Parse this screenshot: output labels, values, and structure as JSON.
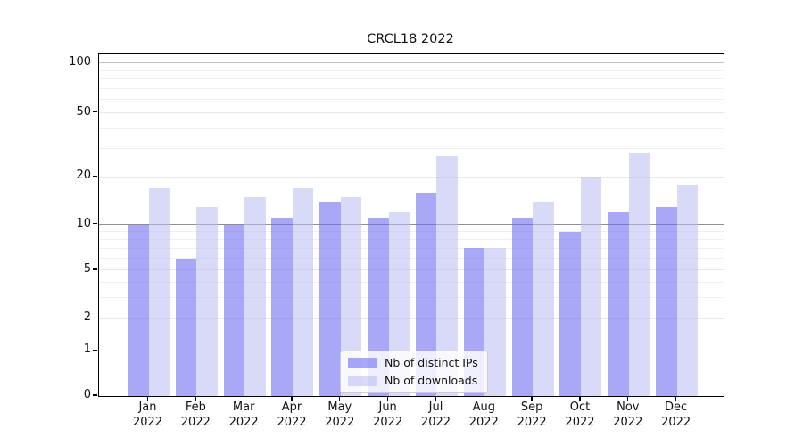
{
  "chart_data": {
    "type": "bar",
    "title": "CRCL18 2022",
    "categories": [
      "Jan",
      "Feb",
      "Mar",
      "Apr",
      "May",
      "Jun",
      "Jul",
      "Aug",
      "Sep",
      "Oct",
      "Nov",
      "Dec"
    ],
    "category_year": "2022",
    "series": [
      {
        "name": "Nb of distinct IPs",
        "color": "#a8a8f5",
        "color_rgba": "rgba(110,110,240,0.6)",
        "values": [
          10,
          6,
          10,
          11,
          14,
          11,
          16,
          7,
          11,
          9,
          12,
          13
        ]
      },
      {
        "name": "Nb of downloads",
        "color": "#d9d9f7",
        "color_rgba": "rgba(186,186,242,0.55)",
        "values": [
          17,
          13,
          15,
          17,
          15,
          12,
          27,
          7,
          14,
          20,
          28,
          18
        ]
      }
    ],
    "xlabel": "",
    "ylabel": "",
    "yscale": "symlog",
    "ylim": [
      0,
      115
    ],
    "yticks": [
      0,
      1,
      2,
      5,
      10,
      20,
      50,
      100
    ],
    "yticks_minor": [
      3,
      4,
      6,
      7,
      8,
      9,
      30,
      40,
      60,
      70,
      80,
      90
    ],
    "y_anchor_fractions": [
      [
        0,
        1.0
      ],
      [
        1,
        0.868
      ],
      [
        2,
        0.7745
      ],
      [
        5,
        0.6328
      ],
      [
        10,
        0.4992
      ],
      [
        20,
        0.3604
      ],
      [
        50,
        0.1737
      ],
      [
        100,
        0.0279
      ]
    ],
    "grid": "on",
    "legend_position": "lower center"
  }
}
